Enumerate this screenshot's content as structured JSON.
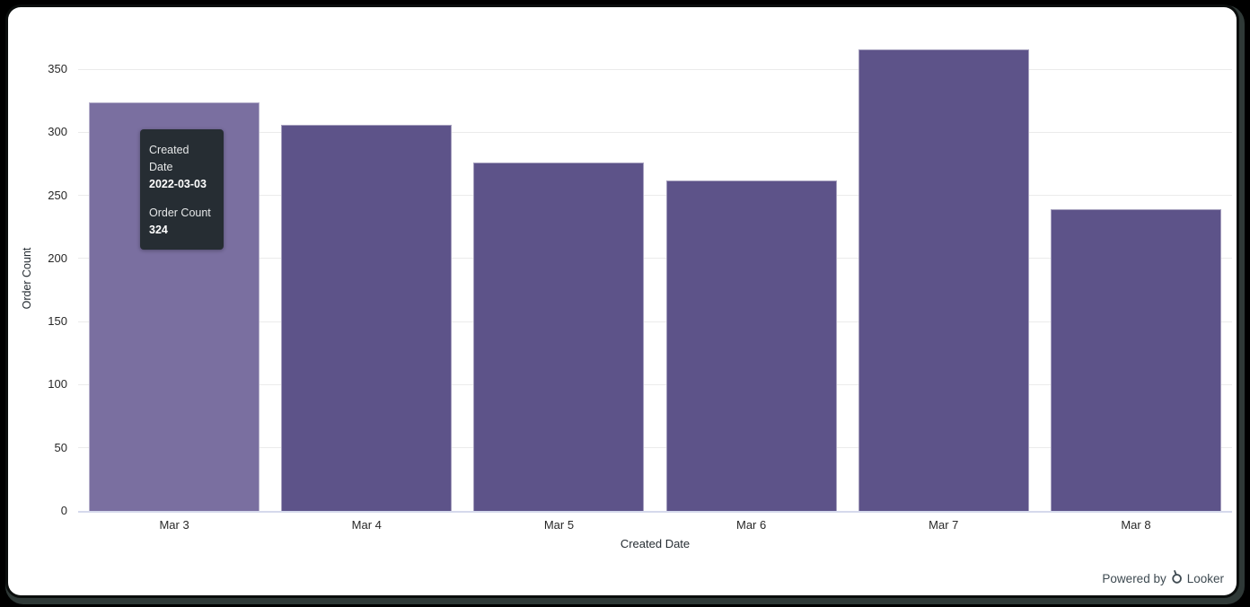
{
  "window": {
    "background": "#000000",
    "card_background": "#ffffff"
  },
  "chart_data": {
    "type": "bar",
    "title": "",
    "categories": [
      "Mar 3",
      "Mar 4",
      "Mar 5",
      "Mar 6",
      "Mar 7",
      "Mar 8"
    ],
    "values": [
      324,
      306,
      276,
      262,
      366,
      239
    ],
    "series_name": "Order Count",
    "xlabel": "Created Date",
    "ylabel": "Order Count",
    "ylim": [
      0,
      350
    ],
    "yticks": [
      0,
      50,
      100,
      150,
      200,
      250,
      300,
      350
    ],
    "grid": true,
    "legend": "none",
    "hovered_index": 0
  },
  "tooltip": {
    "dimension_label": "Created Date",
    "dimension_value": "2022-03-03",
    "measure_label": "Order Count",
    "measure_value": "324"
  },
  "footer": {
    "powered_by": "Powered by",
    "brand": "Looker"
  },
  "colors": {
    "bar": "#5D5389",
    "bar_hover": "#7A6FA0",
    "gridline": "#ebebeb",
    "axis_line": "#d5d9ec",
    "tick_text": "#282828",
    "tooltip_bg": "#262D33",
    "footer_text": "#3E4A51"
  }
}
